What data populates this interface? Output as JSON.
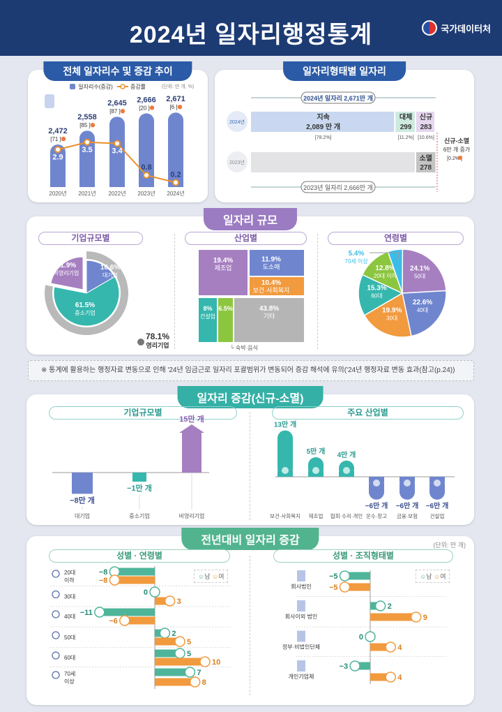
{
  "header": {
    "title": "2024년 일자리행정통계",
    "agency": "국가데이터처"
  },
  "colors": {
    "navy": "#1d3b73",
    "bar_blue": "#6f86cf",
    "line_orange": "#e8912e",
    "purple": "#9b7bc1",
    "teal": "#35b0a6",
    "green": "#52b38f",
    "male": "#4fb59a",
    "female": "#f19a3e"
  },
  "sections": {
    "trend": {
      "title": "전체 일자리수 및 증감 추이"
    },
    "forms": {
      "title": "일자리형태별 일자리"
    },
    "scale": {
      "title": "일자리 규모",
      "sub_company": "기업규모별",
      "sub_industry": "산업별",
      "sub_age": "연령별"
    },
    "note": "※ 통계에 활용하는 행정자료 변동으로 인해 '24년 임금근로 일자리 포괄범위가 변동되어 증감 해석에 유의('24년 행정자료 변동 효과(참고(p.24))",
    "change": {
      "title": "일자리 증감(신규-소멸)",
      "sub_company": "기업규모별",
      "sub_industry": "주요 산업별"
    },
    "yoy": {
      "title": "전년대비 일자리 증감",
      "unit": "(단위: 만 개)",
      "sub_age": "성별 · 연령별",
      "sub_org": "성별 · 조직형태별",
      "legend_male": "남",
      "legend_female": "여"
    }
  },
  "chart_data": [
    {
      "id": "trend",
      "type": "bar+line",
      "title": "전체 일자리수 및 증감 추이",
      "unit": "(단위: 만 개, %)",
      "categories": [
        "2020년",
        "2021년",
        "2022년",
        "2023년",
        "2024년"
      ],
      "series": [
        {
          "name": "일자리수(증감)",
          "values": [
            2472,
            2558,
            2645,
            2666,
            2671
          ],
          "labels": [
            "2,472",
            "2,558",
            "2,645",
            "2,666",
            "2,671"
          ],
          "changes": [
            71,
            85,
            87,
            20,
            6
          ]
        },
        {
          "name": "증감률",
          "values": [
            2.9,
            3.5,
            3.4,
            0.8,
            0.2
          ]
        }
      ]
    },
    {
      "id": "forms",
      "type": "stacked-bar",
      "title": "일자리형태별 일자리",
      "unit": "만 개",
      "total_2024": {
        "label": "2024년 일자리",
        "value": "2,671"
      },
      "total_2023": {
        "label": "2023년 일자리",
        "value": "2,666"
      },
      "rows": [
        {
          "year": "2024년",
          "total": 2671,
          "segments": [
            {
              "label": "지속",
              "value": 2089,
              "text": "2,089",
              "share": "[78.2%]"
            },
            {
              "label": "대체",
              "value": 299,
              "text": "299",
              "share": "[11.2%]"
            },
            {
              "label": "신규",
              "value": 283,
              "text": "283",
              "share": "[10.6%]"
            }
          ]
        },
        {
          "year": "2023년",
          "total": 2666,
          "segments": [
            {
              "label": "소멸",
              "value": 278,
              "text": "278"
            }
          ]
        }
      ],
      "net": {
        "title": "신규-소멸",
        "value": "6",
        "unit": "만 개",
        "suffix": "증가",
        "rate": "[0.2%"
      }
    },
    {
      "id": "company",
      "type": "pie",
      "slices": [
        {
          "label": "대기업",
          "value": 16.6
        },
        {
          "label": "중소기업",
          "value": 61.5
        },
        {
          "label": "비영리기업",
          "value": 21.9
        }
      ],
      "ring": {
        "label": "영리기업",
        "value": 78.1
      },
      "colors": [
        "#6f86cf",
        "#35b7ae",
        "#a67fc0"
      ]
    },
    {
      "id": "industry",
      "type": "treemap",
      "items": [
        {
          "label": "제조업",
          "value": 19.4
        },
        {
          "label": "도소매",
          "value": 11.9
        },
        {
          "label": "보건·사회복지",
          "value": 10.4
        },
        {
          "label": "건설업",
          "value": 8.0
        },
        {
          "label": "숙박·음식",
          "value": 6.5
        },
        {
          "label": "기타",
          "value": 43.8
        }
      ],
      "colors": [
        "#a67fc0",
        "#6f86cf",
        "#f19a3e",
        "#35b7ae",
        "#8cc63f",
        "#b5b5b5"
      ]
    },
    {
      "id": "age",
      "type": "pie",
      "slices": [
        {
          "label": "50대",
          "value": 24.1
        },
        {
          "label": "40대",
          "value": 22.6
        },
        {
          "label": "30대",
          "value": 19.9
        },
        {
          "label": "60대",
          "value": 15.3
        },
        {
          "label": "20대 이하",
          "value": 12.8
        },
        {
          "label": "70세 이상",
          "value": 5.4
        }
      ],
      "colors": [
        "#a67fc0",
        "#6f86cf",
        "#f19a3e",
        "#35b7ae",
        "#8cc63f",
        "#3bbde8"
      ]
    },
    {
      "id": "change_company",
      "type": "bar",
      "unit": "만 개",
      "categories": [
        "대기업",
        "중소기업",
        "비영리기업"
      ],
      "values": [
        -8,
        -1,
        15
      ],
      "colors": [
        "#6f86cf",
        "#35b7ae",
        "#a67fc0"
      ]
    },
    {
      "id": "change_industry",
      "type": "bar",
      "unit": "만 개",
      "categories": [
        "보건·사회복지",
        "제조업",
        "협회·수리·개인",
        "운수·창고",
        "금융·보험",
        "건설업"
      ],
      "values": [
        13,
        5,
        4,
        -6,
        -6,
        -6
      ]
    },
    {
      "id": "yoy_age",
      "type": "bar",
      "orientation": "horizontal",
      "categories": [
        "20대 이하",
        "30대",
        "40대",
        "50대",
        "60대",
        "70세 이상"
      ],
      "series": [
        {
          "name": "남",
          "values": [
            -8,
            0,
            -11,
            2,
            5,
            7
          ]
        },
        {
          "name": "여",
          "values": [
            -8,
            3,
            -6,
            5,
            10,
            8
          ]
        }
      ]
    },
    {
      "id": "yoy_org",
      "type": "bar",
      "orientation": "horizontal",
      "categories": [
        "회사법인",
        "회사이외 법인",
        "정부·비법인단체",
        "개인기업체"
      ],
      "series": [
        {
          "name": "남",
          "values": [
            -5,
            2,
            0,
            -3
          ]
        },
        {
          "name": "여",
          "values": [
            -5,
            9,
            4,
            4
          ]
        }
      ]
    }
  ]
}
